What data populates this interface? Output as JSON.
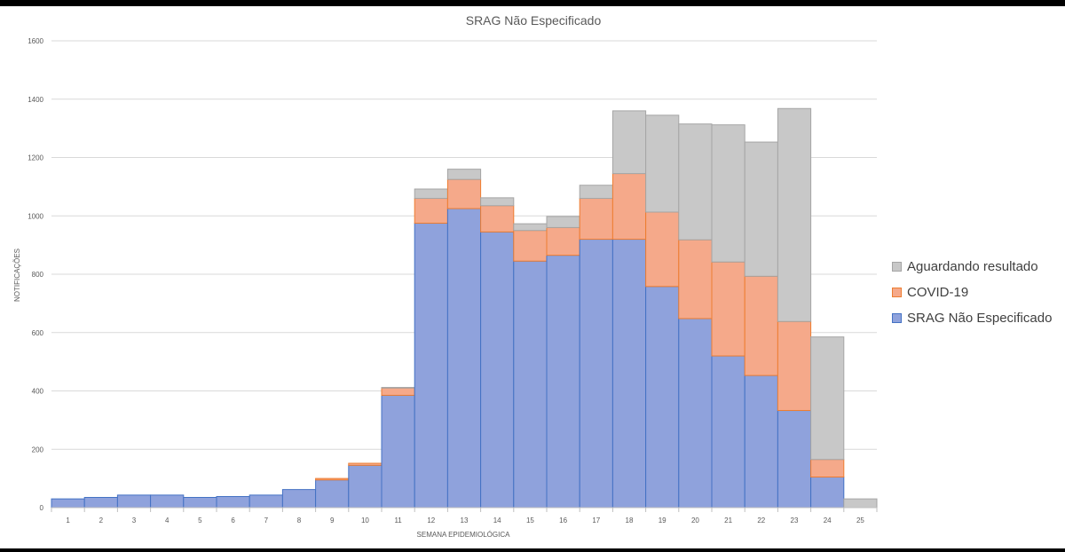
{
  "chart_data": {
    "type": "bar",
    "stacked": true,
    "title": "SRAG Não Especificado",
    "xlabel": "SEMANA EPIDEMIOLÓGICA",
    "ylabel": "NOTIFICAÇÕES",
    "ylim": [
      0,
      1600
    ],
    "yticks": [
      0,
      200,
      400,
      600,
      800,
      1000,
      1200,
      1400,
      1600
    ],
    "grid": true,
    "legend_position": "right",
    "categories": [
      "1",
      "2",
      "3",
      "4",
      "5",
      "6",
      "7",
      "8",
      "9",
      "10",
      "11",
      "12",
      "13",
      "14",
      "15",
      "16",
      "17",
      "18",
      "19",
      "20",
      "21",
      "22",
      "23",
      "24",
      "25"
    ],
    "series": [
      {
        "name": "SRAG Não Especificado",
        "color": "#8fa2dc",
        "edge": "#4472c4",
        "values": [
          30,
          35,
          43,
          43,
          35,
          38,
          43,
          62,
          95,
          145,
          385,
          975,
          1025,
          945,
          845,
          865,
          920,
          920,
          758,
          648,
          520,
          453,
          333,
          105,
          0
        ]
      },
      {
        "name": "COVID-19",
        "color": "#f5a98a",
        "edge": "#ed7d31",
        "values": [
          0,
          0,
          0,
          0,
          0,
          0,
          0,
          0,
          5,
          7,
          25,
          85,
          100,
          90,
          105,
          95,
          140,
          225,
          255,
          270,
          322,
          340,
          305,
          60,
          0
        ]
      },
      {
        "name": "Aguardando resultado",
        "color": "#c8c8c8",
        "edge": "#a5a5a5",
        "values": [
          0,
          0,
          0,
          0,
          0,
          0,
          0,
          0,
          0,
          0,
          2,
          32,
          35,
          27,
          23,
          38,
          45,
          215,
          332,
          397,
          470,
          460,
          730,
          420,
          30
        ]
      }
    ],
    "legend_order": [
      "Aguardando resultado",
      "COVID-19",
      "SRAG Não Especificado"
    ]
  }
}
